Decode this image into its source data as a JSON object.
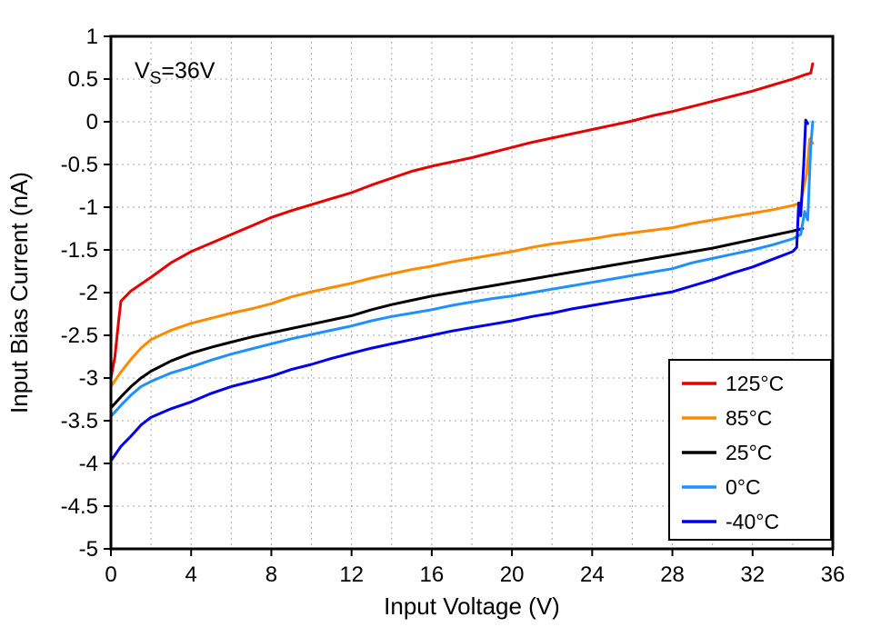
{
  "chart_data": {
    "type": "line",
    "title": "",
    "xlabel": "Input Voltage (V)",
    "ylabel": "Input Bias Current (nA)",
    "annotation": {
      "pre": "V",
      "sub": "S",
      "post": "=36V"
    },
    "xlim": [
      0,
      36
    ],
    "ylim": [
      -5,
      1
    ],
    "x_grid_step": 2,
    "xtick_values": [
      0,
      4,
      8,
      12,
      16,
      20,
      24,
      28,
      32,
      36
    ],
    "xtick_labels": [
      "0",
      "4",
      "8",
      "12",
      "16",
      "20",
      "24",
      "28",
      "32",
      "36"
    ],
    "ytick_values": [
      1,
      0.5,
      0,
      -0.5,
      -1,
      -1.5,
      -2,
      -2.5,
      -3,
      -3.5,
      -4,
      -4.5,
      -5
    ],
    "ytick_labels": [
      "1",
      "0.5",
      "0",
      "-0.5",
      "-1",
      "-1.5",
      "-2",
      "-2.5",
      "-3",
      "-3.5",
      "-4",
      "-4.5",
      "-5"
    ],
    "grid": true,
    "legend_position": "bottom-right",
    "colors": {
      "grid": "#a6a6a6",
      "frame": "#000000"
    },
    "series": [
      {
        "name": "125°C",
        "color": "#e60000",
        "points": [
          [
            0,
            -3.0
          ],
          [
            0.2,
            -2.75
          ],
          [
            0.4,
            -2.3
          ],
          [
            0.5,
            -2.1
          ],
          [
            1,
            -1.98
          ],
          [
            2,
            -1.82
          ],
          [
            3,
            -1.65
          ],
          [
            4,
            -1.52
          ],
          [
            5,
            -1.42
          ],
          [
            6,
            -1.32
          ],
          [
            7,
            -1.22
          ],
          [
            8,
            -1.12
          ],
          [
            9,
            -1.04
          ],
          [
            10,
            -0.97
          ],
          [
            11,
            -0.9
          ],
          [
            12,
            -0.83
          ],
          [
            13,
            -0.74
          ],
          [
            14,
            -0.66
          ],
          [
            15,
            -0.58
          ],
          [
            16,
            -0.52
          ],
          [
            17,
            -0.47
          ],
          [
            18,
            -0.42
          ],
          [
            19,
            -0.36
          ],
          [
            20,
            -0.3
          ],
          [
            21,
            -0.24
          ],
          [
            22,
            -0.19
          ],
          [
            23,
            -0.14
          ],
          [
            24,
            -0.09
          ],
          [
            25,
            -0.04
          ],
          [
            26,
            0.01
          ],
          [
            27,
            0.07
          ],
          [
            28,
            0.12
          ],
          [
            29,
            0.18
          ],
          [
            30,
            0.24
          ],
          [
            31,
            0.3
          ],
          [
            32,
            0.36
          ],
          [
            33,
            0.43
          ],
          [
            34,
            0.5
          ],
          [
            34.6,
            0.55
          ],
          [
            34.9,
            0.57
          ],
          [
            35,
            0.68
          ]
        ]
      },
      {
        "name": "85°C",
        "color": "#ff8a00",
        "points": [
          [
            0,
            -3.1
          ],
          [
            0.5,
            -2.93
          ],
          [
            1,
            -2.78
          ],
          [
            1.5,
            -2.65
          ],
          [
            2,
            -2.55
          ],
          [
            3,
            -2.44
          ],
          [
            4,
            -2.36
          ],
          [
            5,
            -2.3
          ],
          [
            6,
            -2.24
          ],
          [
            7,
            -2.19
          ],
          [
            8,
            -2.13
          ],
          [
            9,
            -2.05
          ],
          [
            10,
            -1.99
          ],
          [
            11,
            -1.94
          ],
          [
            12,
            -1.89
          ],
          [
            13,
            -1.83
          ],
          [
            14,
            -1.78
          ],
          [
            15,
            -1.73
          ],
          [
            16,
            -1.69
          ],
          [
            17,
            -1.64
          ],
          [
            18,
            -1.6
          ],
          [
            19,
            -1.56
          ],
          [
            20,
            -1.52
          ],
          [
            21,
            -1.47
          ],
          [
            22,
            -1.43
          ],
          [
            23,
            -1.4
          ],
          [
            24,
            -1.37
          ],
          [
            25,
            -1.33
          ],
          [
            26,
            -1.3
          ],
          [
            27,
            -1.27
          ],
          [
            28,
            -1.24
          ],
          [
            29,
            -1.19
          ],
          [
            30,
            -1.15
          ],
          [
            31,
            -1.11
          ],
          [
            32,
            -1.07
          ],
          [
            33,
            -1.03
          ],
          [
            34,
            -0.98
          ],
          [
            34.4,
            -0.95
          ],
          [
            34.7,
            -0.6
          ],
          [
            34.85,
            -0.2
          ],
          [
            35,
            -0.25
          ]
        ]
      },
      {
        "name": "25°C",
        "color": "#000000",
        "points": [
          [
            0,
            -3.35
          ],
          [
            0.5,
            -3.22
          ],
          [
            1,
            -3.1
          ],
          [
            1.5,
            -3.0
          ],
          [
            2,
            -2.92
          ],
          [
            3,
            -2.8
          ],
          [
            4,
            -2.71
          ],
          [
            5,
            -2.64
          ],
          [
            6,
            -2.58
          ],
          [
            7,
            -2.52
          ],
          [
            8,
            -2.47
          ],
          [
            9,
            -2.42
          ],
          [
            10,
            -2.37
          ],
          [
            11,
            -2.32
          ],
          [
            12,
            -2.27
          ],
          [
            13,
            -2.2
          ],
          [
            14,
            -2.14
          ],
          [
            15,
            -2.09
          ],
          [
            16,
            -2.04
          ],
          [
            17,
            -2.0
          ],
          [
            18,
            -1.96
          ],
          [
            19,
            -1.92
          ],
          [
            20,
            -1.88
          ],
          [
            21,
            -1.84
          ],
          [
            22,
            -1.8
          ],
          [
            23,
            -1.76
          ],
          [
            24,
            -1.72
          ],
          [
            25,
            -1.68
          ],
          [
            26,
            -1.64
          ],
          [
            27,
            -1.6
          ],
          [
            28,
            -1.56
          ],
          [
            29,
            -1.52
          ],
          [
            30,
            -1.48
          ],
          [
            31,
            -1.43
          ],
          [
            32,
            -1.38
          ],
          [
            33,
            -1.33
          ],
          [
            34,
            -1.28
          ],
          [
            34.5,
            -1.25
          ]
        ]
      },
      {
        "name": "0°C",
        "color": "#1e90ff",
        "points": [
          [
            0,
            -3.45
          ],
          [
            0.5,
            -3.32
          ],
          [
            1,
            -3.2
          ],
          [
            1.5,
            -3.1
          ],
          [
            2,
            -3.04
          ],
          [
            3,
            -2.94
          ],
          [
            4,
            -2.87
          ],
          [
            5,
            -2.79
          ],
          [
            6,
            -2.72
          ],
          [
            7,
            -2.66
          ],
          [
            8,
            -2.6
          ],
          [
            9,
            -2.54
          ],
          [
            10,
            -2.49
          ],
          [
            11,
            -2.44
          ],
          [
            12,
            -2.39
          ],
          [
            13,
            -2.33
          ],
          [
            14,
            -2.28
          ],
          [
            15,
            -2.24
          ],
          [
            16,
            -2.2
          ],
          [
            17,
            -2.15
          ],
          [
            18,
            -2.11
          ],
          [
            19,
            -2.07
          ],
          [
            20,
            -2.04
          ],
          [
            21,
            -2.0
          ],
          [
            22,
            -1.96
          ],
          [
            23,
            -1.92
          ],
          [
            24,
            -1.88
          ],
          [
            25,
            -1.84
          ],
          [
            26,
            -1.8
          ],
          [
            27,
            -1.76
          ],
          [
            28,
            -1.72
          ],
          [
            29,
            -1.65
          ],
          [
            30,
            -1.6
          ],
          [
            31,
            -1.55
          ],
          [
            32,
            -1.5
          ],
          [
            33,
            -1.44
          ],
          [
            34,
            -1.37
          ],
          [
            34.4,
            -1.32
          ],
          [
            34.6,
            -1.05
          ],
          [
            34.75,
            -1.15
          ],
          [
            34.9,
            -0.3
          ],
          [
            35,
            0.0
          ]
        ]
      },
      {
        "name": "-40°C",
        "color": "#0000ee",
        "points": [
          [
            0,
            -3.97
          ],
          [
            0.5,
            -3.8
          ],
          [
            1,
            -3.68
          ],
          [
            1.5,
            -3.55
          ],
          [
            2,
            -3.46
          ],
          [
            3,
            -3.36
          ],
          [
            4,
            -3.28
          ],
          [
            5,
            -3.18
          ],
          [
            6,
            -3.1
          ],
          [
            7,
            -3.04
          ],
          [
            8,
            -2.98
          ],
          [
            9,
            -2.9
          ],
          [
            10,
            -2.84
          ],
          [
            11,
            -2.77
          ],
          [
            12,
            -2.71
          ],
          [
            13,
            -2.65
          ],
          [
            14,
            -2.6
          ],
          [
            15,
            -2.55
          ],
          [
            16,
            -2.5
          ],
          [
            17,
            -2.45
          ],
          [
            18,
            -2.41
          ],
          [
            19,
            -2.37
          ],
          [
            20,
            -2.33
          ],
          [
            21,
            -2.28
          ],
          [
            22,
            -2.24
          ],
          [
            23,
            -2.19
          ],
          [
            24,
            -2.15
          ],
          [
            25,
            -2.11
          ],
          [
            26,
            -2.07
          ],
          [
            27,
            -2.03
          ],
          [
            28,
            -1.99
          ],
          [
            29,
            -1.92
          ],
          [
            30,
            -1.85
          ],
          [
            31,
            -1.77
          ],
          [
            32,
            -1.7
          ],
          [
            33,
            -1.61
          ],
          [
            34,
            -1.52
          ],
          [
            34.2,
            -1.47
          ],
          [
            34.3,
            -0.95
          ],
          [
            34.4,
            -1.1
          ],
          [
            34.55,
            -0.5
          ],
          [
            34.65,
            0.02
          ],
          [
            34.75,
            -0.02
          ]
        ]
      }
    ]
  }
}
